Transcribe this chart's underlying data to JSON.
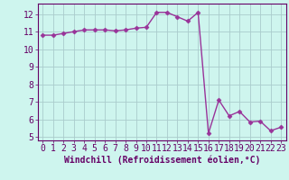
{
  "x": [
    0,
    1,
    2,
    3,
    4,
    5,
    6,
    7,
    8,
    9,
    10,
    11,
    12,
    13,
    14,
    15,
    16,
    17,
    18,
    19,
    20,
    21,
    22,
    23
  ],
  "y": [
    10.8,
    10.8,
    10.9,
    11.0,
    11.1,
    11.1,
    11.1,
    11.05,
    11.1,
    11.2,
    11.25,
    12.1,
    12.1,
    11.85,
    11.6,
    12.1,
    5.2,
    7.1,
    6.2,
    6.45,
    5.85,
    5.9,
    5.35,
    5.55
  ],
  "line_color": "#993399",
  "marker": "D",
  "marker_size": 2.5,
  "bg_color": "#cef5ee",
  "grid_color": "#aacccc",
  "xlabel": "Windchill (Refroidissement éolien,°C)",
  "ylim": [
    4.8,
    12.6
  ],
  "xlim": [
    -0.5,
    23.5
  ],
  "yticks": [
    5,
    6,
    7,
    8,
    9,
    10,
    11,
    12
  ],
  "xticks": [
    0,
    1,
    2,
    3,
    4,
    5,
    6,
    7,
    8,
    9,
    10,
    11,
    12,
    13,
    14,
    15,
    16,
    17,
    18,
    19,
    20,
    21,
    22,
    23
  ],
  "tick_color": "#660066",
  "label_color": "#660066",
  "label_fontsize": 7,
  "tick_fontsize": 7,
  "spine_color": "#660066",
  "linewidth": 1.0
}
